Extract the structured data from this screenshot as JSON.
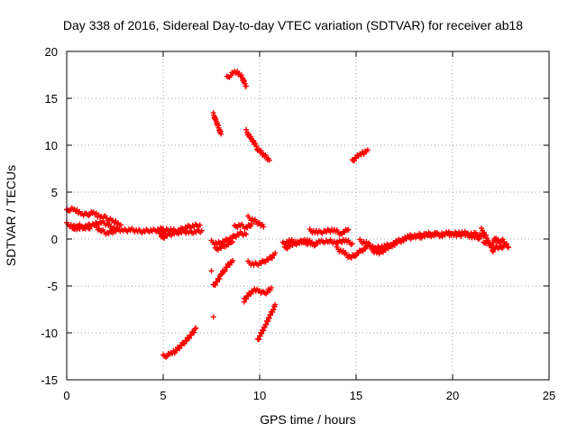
{
  "chart_data": {
    "type": "scatter",
    "title": "Day 338 of 2016, Sidereal Day-to-day VTEC variation (SDTVAR) for receiver ab18",
    "xlabel": "GPS time / hours",
    "ylabel": "SDTVAR / TECUs",
    "xlim": [
      0,
      25
    ],
    "ylim": [
      -15,
      20
    ],
    "xticks": [
      0,
      5,
      10,
      15,
      20,
      25
    ],
    "yticks": [
      -15,
      -10,
      -5,
      0,
      5,
      10,
      15,
      20
    ],
    "grid": true,
    "marker": "+",
    "series": [
      {
        "name": "SDTVAR",
        "color": "#ff0000",
        "segments": [
          [
            [
              0.0,
              3.0
            ],
            [
              0.2,
              3.2
            ],
            [
              0.4,
              3.1
            ],
            [
              0.6,
              2.9
            ],
            [
              0.8,
              2.7
            ],
            [
              1.0,
              2.6
            ],
            [
              1.2,
              2.7
            ],
            [
              1.4,
              2.8
            ],
            [
              1.6,
              2.5
            ],
            [
              1.8,
              2.4
            ],
            [
              2.0,
              2.3
            ],
            [
              2.2,
              2.1
            ],
            [
              2.4,
              1.9
            ],
            [
              2.6,
              1.7
            ],
            [
              2.8,
              1.5
            ]
          ],
          [
            [
              0.0,
              1.6
            ],
            [
              0.3,
              1.4
            ],
            [
              0.6,
              1.1
            ],
            [
              0.9,
              1.3
            ],
            [
              1.2,
              1.5
            ],
            [
              1.5,
              1.6
            ],
            [
              1.8,
              1.8
            ],
            [
              2.1,
              1.6
            ],
            [
              2.4,
              1.2
            ],
            [
              2.7,
              1.0
            ],
            [
              3.0,
              0.9
            ],
            [
              3.3,
              1.0
            ],
            [
              3.6,
              0.9
            ],
            [
              3.9,
              0.8
            ],
            [
              4.2,
              0.9
            ],
            [
              4.5,
              0.9
            ],
            [
              4.8,
              1.0
            ],
            [
              5.0,
              1.1
            ]
          ],
          [
            [
              1.5,
              1.3
            ],
            [
              1.8,
              0.9
            ],
            [
              2.1,
              0.6
            ],
            [
              2.4,
              0.8
            ],
            [
              2.7,
              1.0
            ]
          ],
          [
            [
              0.3,
              1.0
            ],
            [
              0.6,
              1.5
            ],
            [
              0.9,
              1.2
            ],
            [
              1.2,
              1.1
            ]
          ],
          [
            [
              4.8,
              0.5
            ],
            [
              5.1,
              0.9
            ],
            [
              5.4,
              1.0
            ],
            [
              5.7,
              0.8
            ],
            [
              6.0,
              1.1
            ],
            [
              6.3,
              1.3
            ],
            [
              6.6,
              1.4
            ],
            [
              6.9,
              1.5
            ]
          ],
          [
            [
              4.9,
              0.1
            ],
            [
              5.2,
              0.4
            ],
            [
              5.5,
              0.6
            ],
            [
              5.8,
              0.7
            ],
            [
              6.1,
              0.8
            ],
            [
              6.4,
              0.7
            ],
            [
              6.7,
              0.8
            ],
            [
              7.0,
              0.9
            ]
          ],
          [
            [
              5.0,
              -12.5
            ],
            [
              5.2,
              -12.4
            ],
            [
              5.4,
              -12.2
            ],
            [
              5.6,
              -12.0
            ],
            [
              5.8,
              -11.6
            ],
            [
              6.0,
              -11.2
            ],
            [
              6.2,
              -10.8
            ],
            [
              6.4,
              -10.3
            ],
            [
              6.6,
              -9.8
            ],
            [
              6.7,
              -9.5
            ]
          ],
          [
            [
              7.6,
              13.3
            ],
            [
              7.7,
              12.8
            ],
            [
              7.8,
              12.3
            ],
            [
              7.9,
              11.7
            ],
            [
              8.0,
              11.2
            ]
          ],
          [
            [
              8.3,
              17.2
            ],
            [
              8.5,
              17.5
            ],
            [
              8.7,
              17.8
            ],
            [
              8.9,
              17.7
            ],
            [
              9.1,
              17.2
            ],
            [
              9.2,
              16.7
            ],
            [
              9.3,
              16.3
            ]
          ],
          [
            [
              9.3,
              11.5
            ],
            [
              9.5,
              10.9
            ],
            [
              9.7,
              10.3
            ],
            [
              9.9,
              9.6
            ],
            [
              10.1,
              9.2
            ],
            [
              10.3,
              8.8
            ],
            [
              10.5,
              8.4
            ]
          ],
          [
            [
              7.6,
              -5.0
            ],
            [
              7.8,
              -4.5
            ],
            [
              8.0,
              -3.8
            ],
            [
              8.2,
              -3.2
            ],
            [
              8.4,
              -2.7
            ],
            [
              8.6,
              -2.3
            ]
          ],
          [
            [
              7.5,
              -0.3
            ],
            [
              7.8,
              -0.5
            ],
            [
              8.1,
              -0.3
            ],
            [
              8.4,
              0.0
            ],
            [
              8.7,
              0.3
            ],
            [
              9.0,
              0.6
            ],
            [
              9.3,
              0.5
            ]
          ],
          [
            [
              7.7,
              -1.1
            ],
            [
              8.0,
              -0.9
            ],
            [
              8.3,
              -0.6
            ],
            [
              8.6,
              -0.3
            ]
          ],
          [
            [
              8.7,
              1.3
            ],
            [
              9.0,
              1.5
            ],
            [
              9.3,
              1.2
            ],
            [
              9.6,
              1.6
            ]
          ],
          [
            [
              9.4,
              -2.5
            ],
            [
              9.7,
              -2.7
            ],
            [
              10.0,
              -2.6
            ],
            [
              10.3,
              -2.3
            ],
            [
              10.6,
              -2.0
            ],
            [
              10.8,
              -1.5
            ]
          ],
          [
            [
              9.4,
              2.3
            ],
            [
              9.7,
              2.0
            ],
            [
              10.0,
              1.6
            ],
            [
              10.2,
              1.3
            ]
          ],
          [
            [
              9.2,
              -6.5
            ],
            [
              9.4,
              -6.0
            ],
            [
              9.6,
              -5.6
            ],
            [
              9.8,
              -5.4
            ],
            [
              10.0,
              -5.5
            ],
            [
              10.2,
              -5.8
            ],
            [
              10.4,
              -5.6
            ],
            [
              10.6,
              -5.2
            ]
          ],
          [
            [
              9.9,
              -10.8
            ],
            [
              10.1,
              -10.0
            ],
            [
              10.3,
              -9.2
            ],
            [
              10.5,
              -8.3
            ],
            [
              10.7,
              -7.5
            ],
            [
              10.8,
              -7.0
            ]
          ],
          [
            [
              11.2,
              -0.5
            ],
            [
              11.6,
              -0.2
            ],
            [
              12.0,
              -0.4
            ],
            [
              12.4,
              -0.1
            ],
            [
              12.8,
              -0.5
            ],
            [
              13.2,
              -0.3
            ],
            [
              13.6,
              -0.2
            ],
            [
              14.0,
              -0.4
            ],
            [
              14.4,
              -0.1
            ],
            [
              14.8,
              -0.5
            ]
          ],
          [
            [
              11.3,
              -1.0
            ],
            [
              11.7,
              -0.6
            ],
            [
              12.1,
              -0.3
            ],
            [
              12.5,
              -0.4
            ],
            [
              12.9,
              -0.6
            ]
          ],
          [
            [
              12.6,
              0.9
            ],
            [
              13.0,
              0.7
            ],
            [
              13.4,
              0.8
            ],
            [
              13.8,
              1.0
            ],
            [
              14.2,
              0.6
            ],
            [
              14.6,
              1.0
            ]
          ],
          [
            [
              14.0,
              -1.0
            ],
            [
              14.4,
              -1.5
            ],
            [
              14.7,
              -2.0
            ],
            [
              15.0,
              -1.6
            ],
            [
              15.3,
              -1.2
            ],
            [
              15.6,
              -0.8
            ]
          ],
          [
            [
              14.8,
              8.3
            ],
            [
              15.0,
              8.7
            ],
            [
              15.2,
              9.0
            ],
            [
              15.4,
              9.2
            ],
            [
              15.6,
              9.5
            ]
          ],
          [
            [
              15.2,
              -0.2
            ],
            [
              15.6,
              -0.5
            ],
            [
              16.0,
              -1.0
            ],
            [
              16.4,
              -0.8
            ],
            [
              16.8,
              -0.6
            ],
            [
              17.2,
              -0.2
            ],
            [
              17.6,
              0.1
            ],
            [
              18.0,
              0.2
            ],
            [
              18.4,
              0.3
            ],
            [
              18.8,
              0.4
            ],
            [
              19.2,
              0.5
            ],
            [
              19.6,
              0.6
            ],
            [
              20.0,
              0.5
            ],
            [
              20.4,
              0.7
            ],
            [
              20.8,
              0.6
            ],
            [
              21.2,
              0.5
            ],
            [
              21.6,
              0.3
            ]
          ],
          [
            [
              15.8,
              -1.2
            ],
            [
              16.2,
              -1.5
            ],
            [
              16.6,
              -1.0
            ],
            [
              17.0,
              -0.5
            ],
            [
              17.4,
              -0.1
            ],
            [
              17.8,
              0.3
            ],
            [
              18.2,
              0.4
            ],
            [
              18.6,
              0.5
            ],
            [
              19.0,
              0.6
            ],
            [
              19.4,
              0.4
            ],
            [
              19.8,
              0.6
            ],
            [
              20.2,
              0.4
            ],
            [
              20.6,
              0.5
            ],
            [
              21.0,
              0.3
            ],
            [
              21.4,
              0.1
            ]
          ],
          [
            [
              21.5,
              1.0
            ],
            [
              21.7,
              0.4
            ],
            [
              21.9,
              -0.5
            ],
            [
              22.1,
              -1.2
            ],
            [
              22.3,
              -0.8
            ],
            [
              22.5,
              -1.0
            ],
            [
              22.7,
              -0.6
            ],
            [
              22.9,
              -0.9
            ]
          ],
          [
            [
              21.6,
              -0.5
            ],
            [
              21.8,
              -0.2
            ],
            [
              22.0,
              -0.8
            ],
            [
              22.2,
              0.1
            ],
            [
              22.4,
              -0.3
            ],
            [
              22.6,
              -0.2
            ],
            [
              22.8,
              -0.5
            ]
          ]
        ],
        "points": [
          [
            7.6,
            -8.3
          ],
          [
            7.5,
            -3.4
          ],
          [
            9.2,
            -6.7
          ]
        ]
      }
    ]
  }
}
